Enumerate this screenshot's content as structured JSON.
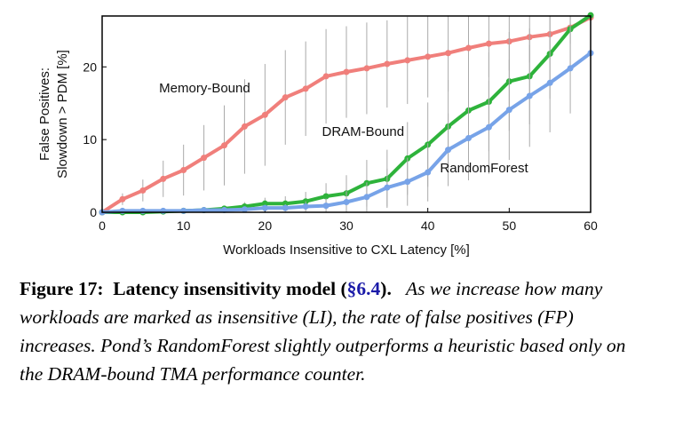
{
  "chart_data": {
    "type": "line",
    "xlabel": "Workloads Insensitive to CXL Latency [%]",
    "ylabel_line1": "False Positives:",
    "ylabel_line2": "Slowdown > PDM [%]",
    "xlim": [
      0,
      60
    ],
    "ylim": [
      0,
      27
    ],
    "xticks": [
      0,
      10,
      20,
      30,
      40,
      50,
      60
    ],
    "yticks": [
      0,
      10,
      20
    ],
    "x": [
      0,
      2.5,
      5,
      7.5,
      10,
      12.5,
      15,
      17.5,
      20,
      22.5,
      25,
      27.5,
      30,
      32.5,
      35,
      37.5,
      40,
      42.5,
      45,
      47.5,
      50,
      52.5,
      55,
      57.5,
      60
    ],
    "series": [
      {
        "name": "Memory-Bound",
        "color": "#f07f7b",
        "values": [
          0,
          1.8,
          3.0,
          4.6,
          5.8,
          7.5,
          9.2,
          11.8,
          13.4,
          15.8,
          17.0,
          18.7,
          19.3,
          19.8,
          20.4,
          20.9,
          21.4,
          21.9,
          22.6,
          23.2,
          23.5,
          24.1,
          24.5,
          25.4,
          26.8
        ],
        "err": [
          0,
          0.8,
          1.5,
          2.5,
          3.5,
          4.5,
          5.5,
          6.5,
          7,
          6.5,
          6.5,
          6.5,
          6.3,
          6.3,
          6,
          6,
          5.6,
          5.3,
          5,
          4.6,
          4,
          3.5,
          3,
          2.2,
          1.2
        ]
      },
      {
        "name": "DRAM-Bound",
        "color": "#2eb33b",
        "values": [
          0,
          0,
          0,
          0.1,
          0.2,
          0.3,
          0.5,
          0.8,
          1.2,
          1.2,
          1.5,
          2.2,
          2.6,
          4.0,
          4.6,
          7.4,
          9.3,
          11.8,
          14.0,
          15.2,
          18.0,
          18.7,
          21.8,
          25.2,
          27.1
        ],
        "err": [
          0,
          0,
          0,
          0.1,
          0.2,
          0.3,
          0.4,
          0.6,
          0.8,
          1,
          1.3,
          1.8,
          2.5,
          3.2,
          4,
          5,
          5.8,
          6.4,
          6.8,
          6.8,
          6.8,
          6.6,
          6.2,
          5.2,
          3
        ]
      },
      {
        "name": "RandomForest",
        "color": "#77a3e8",
        "values": [
          0,
          0.2,
          0.2,
          0.2,
          0.2,
          0.3,
          0.3,
          0.4,
          0.6,
          0.6,
          0.8,
          0.9,
          1.4,
          2.1,
          3.4,
          4.2,
          5.5,
          8.6,
          10.2,
          11.7,
          14.1,
          16.0,
          17.8,
          19.8,
          21.9
        ],
        "err": [
          0,
          0,
          0,
          0.1,
          0.1,
          0.2,
          0.2,
          0.3,
          0.4,
          0.5,
          0.7,
          1,
          1.5,
          2,
          2.6,
          3.3,
          4,
          5,
          5.8,
          6.4,
          6.9,
          7,
          6.8,
          6.2,
          5
        ]
      }
    ]
  },
  "caption": {
    "figure_label": "Figure 17:",
    "title_before_ref": "Latency insensitivity model (",
    "ref": "§6.4",
    "title_after_ref": ").",
    "body": "As we increase how many workloads are marked as insensitive (LI), the rate of false positives (FP) increases. Pond’s RandomForest slightly outperforms a heuristic based only on the DRAM-bound TMA performance counter."
  }
}
